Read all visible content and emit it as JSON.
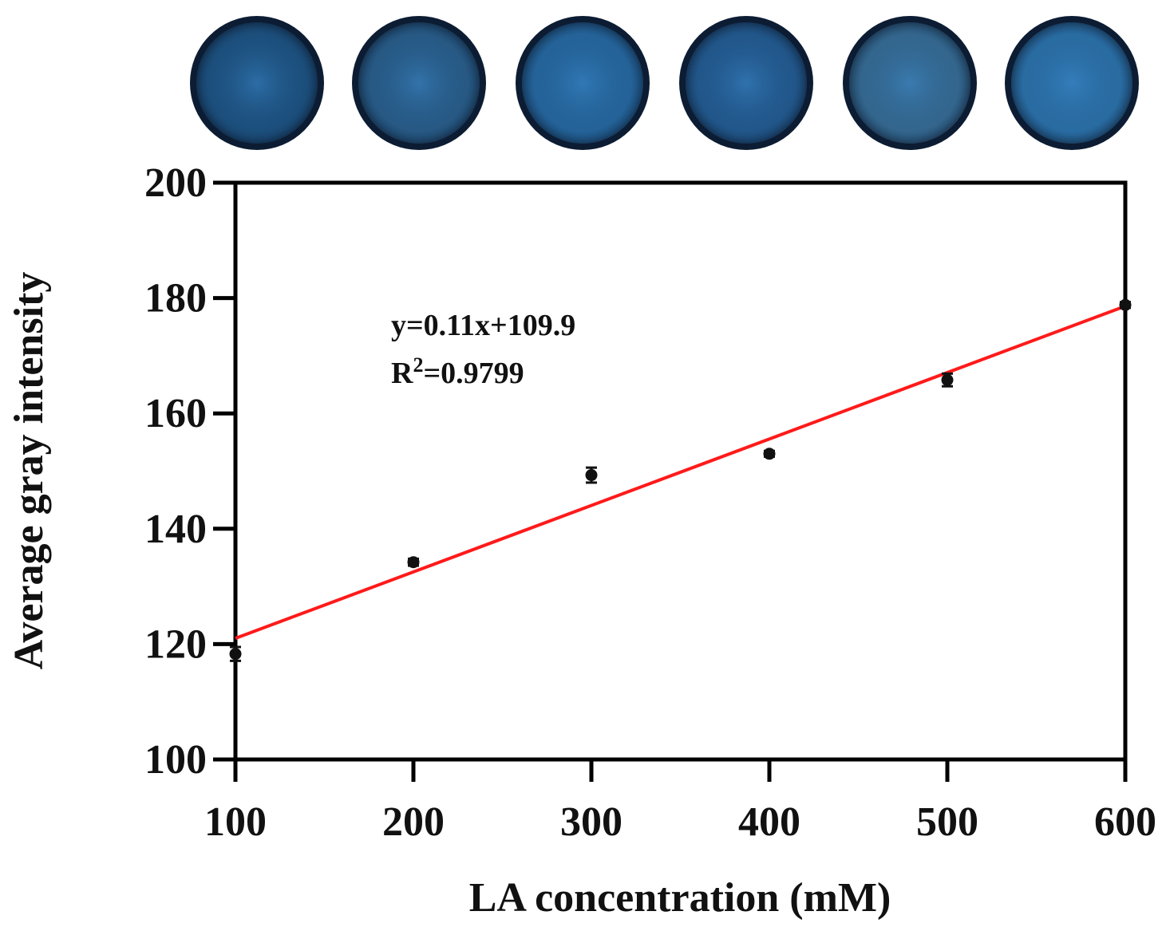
{
  "colors": {
    "fit_line": "#ff1a1a",
    "points": "#111111",
    "axis": "#000000",
    "well_rim": "#0c1c33",
    "well_fill": "#1f5a8c"
  },
  "wells": {
    "count": 6,
    "fill_colors": [
      "#1c4f7c",
      "#2a5c86",
      "#2668a0",
      "#23598e",
      "#3a6d92",
      "#2d74ac"
    ]
  },
  "chart_data": {
    "type": "scatter",
    "xlabel": "LA concentration (mM)",
    "ylabel": "Average gray intensity",
    "xlim": [
      100,
      600
    ],
    "ylim": [
      100,
      200
    ],
    "x_ticks": [
      100,
      200,
      300,
      400,
      500,
      600
    ],
    "y_ticks": [
      100,
      120,
      140,
      160,
      180,
      200
    ],
    "x_tick_labels": [
      "100",
      "200",
      "300",
      "400",
      "500",
      "600"
    ],
    "y_tick_labels": [
      "100",
      "120",
      "140",
      "160",
      "180",
      "200"
    ],
    "grid": false,
    "series": [
      {
        "x": [
          100,
          200,
          300,
          400,
          500,
          600
        ],
        "y": [
          118.3,
          134.2,
          149.3,
          153.0,
          165.8,
          178.8
        ],
        "error": [
          1.2,
          0.6,
          1.3,
          0.5,
          1.1,
          0.5
        ]
      }
    ],
    "fit": {
      "x_range": [
        100,
        600
      ],
      "y_range": [
        121.0,
        178.6
      ]
    },
    "annotation": {
      "equation": "y=0.11x+109.9",
      "r2_prefix": "R",
      "r2_superscript": "2",
      "r2_value": "=0.9799"
    }
  }
}
